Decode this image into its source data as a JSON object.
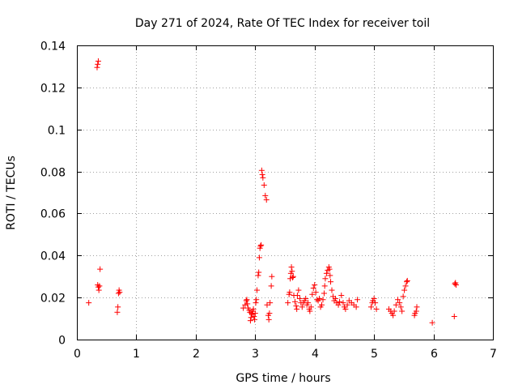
{
  "chart_data": {
    "type": "scatter",
    "title": "Day 271 of 2024, Rate Of TEC Index for receiver toil",
    "xlabel": "GPS time / hours",
    "ylabel": "ROTI / TECUs",
    "xlim": [
      0,
      7
    ],
    "ylim": [
      0,
      0.14
    ],
    "xticks": [
      0,
      1,
      2,
      3,
      4,
      5,
      6,
      7
    ],
    "yticks": [
      0,
      0.02,
      0.04,
      0.06,
      0.08,
      0.1,
      0.12,
      0.14
    ],
    "xtick_labels": [
      "0",
      "1",
      "2",
      "3",
      "4",
      "5",
      "6",
      "7"
    ],
    "ytick_labels": [
      "0",
      "0.02",
      "0.04",
      "0.06",
      "0.08",
      "0.1",
      "0.12",
      "0.14"
    ],
    "grid": true,
    "marker": "+",
    "color": "#ff0000",
    "series": [
      {
        "name": "ROTI",
        "points": [
          [
            0.2,
            0.0175
          ],
          [
            0.34,
            0.1295
          ],
          [
            0.35,
            0.131
          ],
          [
            0.36,
            0.1325
          ],
          [
            0.35,
            0.026
          ],
          [
            0.36,
            0.025
          ],
          [
            0.37,
            0.0235
          ],
          [
            0.38,
            0.0255
          ],
          [
            0.39,
            0.0335
          ],
          [
            0.68,
            0.013
          ],
          [
            0.69,
            0.0155
          ],
          [
            0.7,
            0.022
          ],
          [
            0.71,
            0.0235
          ],
          [
            0.72,
            0.0225
          ],
          [
            2.8,
            0.015
          ],
          [
            2.83,
            0.0165
          ],
          [
            2.85,
            0.0185
          ],
          [
            2.86,
            0.019
          ],
          [
            2.87,
            0.017
          ],
          [
            2.88,
            0.015
          ],
          [
            2.9,
            0.014
          ],
          [
            2.91,
            0.013
          ],
          [
            2.92,
            0.009
          ],
          [
            2.93,
            0.0105
          ],
          [
            2.94,
            0.0125
          ],
          [
            2.95,
            0.012
          ],
          [
            2.96,
            0.0135
          ],
          [
            2.97,
            0.0145
          ],
          [
            2.98,
            0.011
          ],
          [
            2.99,
            0.0095
          ],
          [
            3.0,
            0.0125
          ],
          [
            3.01,
            0.0175
          ],
          [
            3.02,
            0.019
          ],
          [
            3.03,
            0.0235
          ],
          [
            3.05,
            0.0305
          ],
          [
            3.06,
            0.032
          ],
          [
            3.07,
            0.039
          ],
          [
            3.08,
            0.0435
          ],
          [
            3.09,
            0.0445
          ],
          [
            3.1,
            0.045
          ],
          [
            3.11,
            0.0805
          ],
          [
            3.12,
            0.0785
          ],
          [
            3.13,
            0.077
          ],
          [
            3.15,
            0.0735
          ],
          [
            3.17,
            0.0685
          ],
          [
            3.19,
            0.0665
          ],
          [
            3.2,
            0.0165
          ],
          [
            3.22,
            0.0115
          ],
          [
            3.23,
            0.0095
          ],
          [
            3.24,
            0.0125
          ],
          [
            3.25,
            0.0175
          ],
          [
            3.27,
            0.0255
          ],
          [
            3.28,
            0.03
          ],
          [
            3.55,
            0.0175
          ],
          [
            3.57,
            0.0215
          ],
          [
            3.58,
            0.0225
          ],
          [
            3.59,
            0.029
          ],
          [
            3.6,
            0.0315
          ],
          [
            3.61,
            0.0345
          ],
          [
            3.62,
            0.0325
          ],
          [
            3.63,
            0.0295
          ],
          [
            3.64,
            0.03
          ],
          [
            3.65,
            0.021
          ],
          [
            3.67,
            0.018
          ],
          [
            3.69,
            0.016
          ],
          [
            3.7,
            0.0145
          ],
          [
            3.71,
            0.021
          ],
          [
            3.73,
            0.0235
          ],
          [
            3.75,
            0.0195
          ],
          [
            3.77,
            0.0175
          ],
          [
            3.79,
            0.0155
          ],
          [
            3.81,
            0.0175
          ],
          [
            3.83,
            0.0185
          ],
          [
            3.85,
            0.0195
          ],
          [
            3.87,
            0.0165
          ],
          [
            3.89,
            0.0175
          ],
          [
            3.91,
            0.0145
          ],
          [
            3.92,
            0.0135
          ],
          [
            3.94,
            0.0155
          ],
          [
            3.96,
            0.0215
          ],
          [
            3.98,
            0.0245
          ],
          [
            4.0,
            0.026
          ],
          [
            4.02,
            0.0225
          ],
          [
            4.04,
            0.019
          ],
          [
            4.06,
            0.0185
          ],
          [
            4.08,
            0.0195
          ],
          [
            4.1,
            0.0155
          ],
          [
            4.12,
            0.0165
          ],
          [
            4.14,
            0.019
          ],
          [
            4.16,
            0.022
          ],
          [
            4.17,
            0.0255
          ],
          [
            4.18,
            0.029
          ],
          [
            4.2,
            0.0315
          ],
          [
            4.22,
            0.033
          ],
          [
            4.24,
            0.0345
          ],
          [
            4.25,
            0.0335
          ],
          [
            4.26,
            0.0305
          ],
          [
            4.27,
            0.0275
          ],
          [
            4.29,
            0.0235
          ],
          [
            4.31,
            0.0205
          ],
          [
            4.33,
            0.0185
          ],
          [
            4.35,
            0.0195
          ],
          [
            4.37,
            0.0175
          ],
          [
            4.4,
            0.0165
          ],
          [
            4.42,
            0.018
          ],
          [
            4.45,
            0.021
          ],
          [
            4.48,
            0.0175
          ],
          [
            4.5,
            0.0155
          ],
          [
            4.52,
            0.0145
          ],
          [
            4.55,
            0.0165
          ],
          [
            4.58,
            0.0185
          ],
          [
            4.62,
            0.0175
          ],
          [
            4.66,
            0.0165
          ],
          [
            4.7,
            0.0155
          ],
          [
            4.72,
            0.019
          ],
          [
            4.95,
            0.0155
          ],
          [
            4.97,
            0.0175
          ],
          [
            4.98,
            0.0185
          ],
          [
            5.0,
            0.0195
          ],
          [
            5.02,
            0.0175
          ],
          [
            5.04,
            0.0145
          ],
          [
            5.25,
            0.0145
          ],
          [
            5.28,
            0.0135
          ],
          [
            5.3,
            0.0125
          ],
          [
            5.32,
            0.0115
          ],
          [
            5.34,
            0.0135
          ],
          [
            5.37,
            0.0165
          ],
          [
            5.4,
            0.019
          ],
          [
            5.43,
            0.0175
          ],
          [
            5.45,
            0.0155
          ],
          [
            5.47,
            0.0135
          ],
          [
            5.49,
            0.0205
          ],
          [
            5.51,
            0.0235
          ],
          [
            5.53,
            0.0255
          ],
          [
            5.55,
            0.0275
          ],
          [
            5.56,
            0.028
          ],
          [
            5.68,
            0.0115
          ],
          [
            5.69,
            0.0125
          ],
          [
            5.71,
            0.0135
          ],
          [
            5.72,
            0.0155
          ],
          [
            5.98,
            0.008
          ],
          [
            6.35,
            0.011
          ],
          [
            6.36,
            0.0265
          ],
          [
            6.37,
            0.027
          ],
          [
            6.38,
            0.026
          ]
        ]
      }
    ]
  }
}
